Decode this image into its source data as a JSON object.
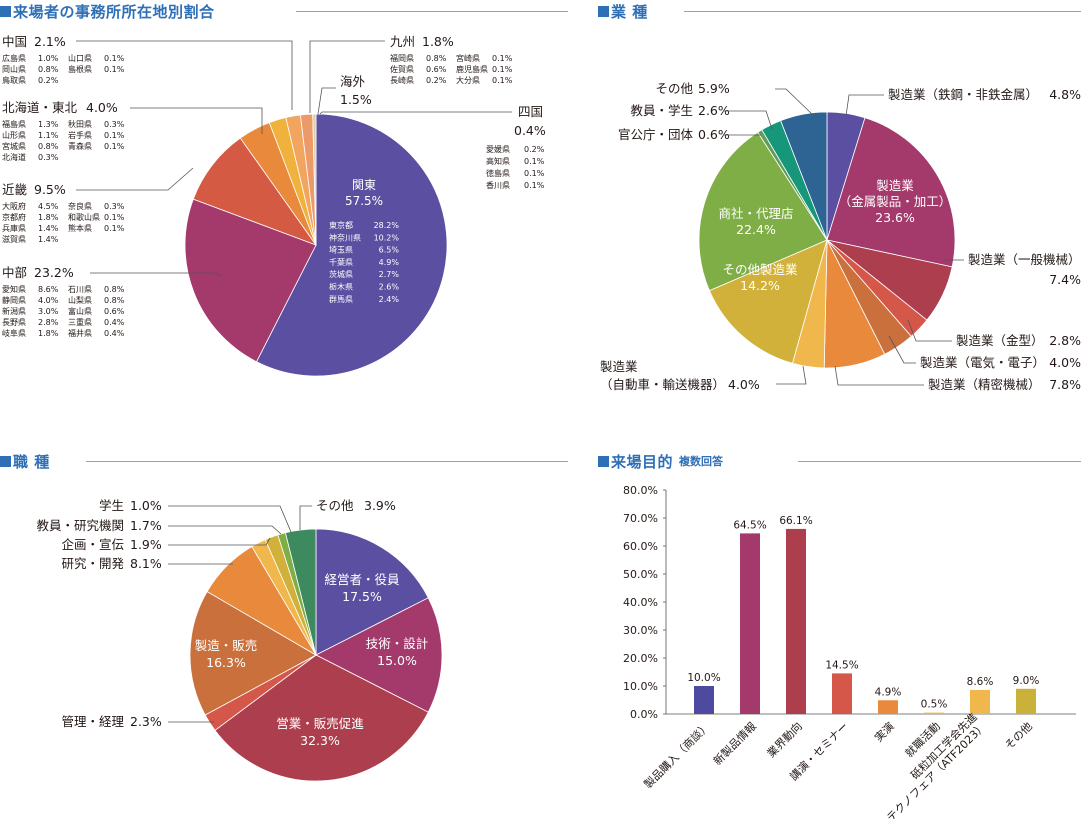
{
  "colors": {
    "header": "#2f6fb6",
    "header_line": "#6aaee6"
  },
  "panels": {
    "region": {
      "title": "来場者の事務所所在地別割合"
    },
    "industry": {
      "title": "業 種"
    },
    "job": {
      "title": "職 種"
    },
    "purpose": {
      "title": "来場目的",
      "subtitle": "複数回答"
    }
  },
  "chart_data": [
    {
      "id": "region",
      "type": "pie",
      "title": "来場者の事務所所在地別割合",
      "slices": [
        {
          "name": "関東",
          "value": 57.5,
          "color": "#5a4fa0",
          "label": "関東",
          "value_label": "57.5%",
          "breakdown": [
            [
              "東京都",
              "28.2%"
            ],
            [
              "神奈川県",
              "10.2%"
            ],
            [
              "埼玉県",
              "6.5%"
            ],
            [
              "千葉県",
              "4.9%"
            ],
            [
              "茨城県",
              "2.7%"
            ],
            [
              "栃木県",
              "2.6%"
            ],
            [
              "群馬県",
              "2.4%"
            ]
          ]
        },
        {
          "name": "中部",
          "value": 23.2,
          "color": "#a33a6b",
          "label": "中部",
          "value_label": "23.2%",
          "breakdown": [
            [
              "愛知県",
              "8.6%",
              "石川県",
              "0.8%"
            ],
            [
              "静岡県",
              "4.0%",
              "山梨県",
              "0.8%"
            ],
            [
              "新潟県",
              "3.0%",
              "富山県",
              "0.6%"
            ],
            [
              "長野県",
              "2.8%",
              "三重県",
              "0.4%"
            ],
            [
              "岐阜県",
              "1.8%",
              "福井県",
              "0.4%"
            ]
          ]
        },
        {
          "name": "近畿",
          "value": 9.5,
          "color": "#d45a44",
          "label": "近畿",
          "value_label": "9.5%",
          "breakdown": [
            [
              "大阪府",
              "4.5%",
              "奈良県",
              "0.3%"
            ],
            [
              "京都府",
              "1.8%",
              "和歌山県",
              "0.1%"
            ],
            [
              "兵庫県",
              "1.4%",
              "熊本県",
              "0.1%"
            ],
            [
              "滋賀県",
              "1.4%",
              "",
              ""
            ]
          ]
        },
        {
          "name": "北海道・東北",
          "value": 4.0,
          "color": "#e8893b",
          "label": "北海道・東北",
          "value_label": "4.0%",
          "breakdown": [
            [
              "福島県",
              "1.3%",
              "秋田県",
              "0.3%"
            ],
            [
              "山形県",
              "1.1%",
              "岩手県",
              "0.1%"
            ],
            [
              "宮城県",
              "0.8%",
              "青森県",
              "0.1%"
            ],
            [
              "北海道",
              "0.3%",
              "",
              ""
            ]
          ]
        },
        {
          "name": "中国",
          "value": 2.1,
          "color": "#f0b13d",
          "label": "中国",
          "value_label": "2.1%",
          "breakdown": [
            [
              "広島県",
              "1.0%",
              "山口県",
              "0.1%"
            ],
            [
              "岡山県",
              "0.8%",
              "島根県",
              "0.1%"
            ],
            [
              "鳥取県",
              "0.2%",
              "",
              ""
            ]
          ]
        },
        {
          "name": "九州",
          "value": 1.8,
          "color": "#f1a55e",
          "label": "九州",
          "value_label": "1.8%",
          "breakdown": [
            [
              "福岡県",
              "0.8%",
              "宮崎県",
              "0.1%"
            ],
            [
              "佐賀県",
              "0.6%",
              "鹿児島県",
              "0.1%"
            ],
            [
              "長崎県",
              "0.2%",
              "大分県",
              "0.1%"
            ]
          ]
        },
        {
          "name": "海外",
          "value": 1.5,
          "color": "#ec9a6a",
          "label": "海外",
          "value_label": "1.5%",
          "breakdown": []
        },
        {
          "name": "四国",
          "value": 0.4,
          "color": "#d9cfa8",
          "label": "四国",
          "value_label": "0.4%",
          "breakdown": [
            [
              "愛媛県",
              "0.2%"
            ],
            [
              "高知県",
              "0.1%"
            ],
            [
              "徳島県",
              "0.1%"
            ],
            [
              "香川県",
              "0.1%"
            ]
          ]
        }
      ]
    },
    {
      "id": "industry",
      "type": "pie",
      "title": "業 種",
      "slices": [
        {
          "name": "製造業（鉄鋼・非鉄金属）",
          "value": 4.8,
          "color": "#5a4fa0",
          "label": "製造業（鉄鋼・非鉄金属）",
          "value_label": "4.8%"
        },
        {
          "name": "製造業（金属製品・加工）",
          "value": 23.6,
          "color": "#a33a6b",
          "label": "製造業\n（金属製品・加工）",
          "value_label": "23.6%"
        },
        {
          "name": "製造業（一般機械）",
          "value": 7.4,
          "color": "#ad3e4e",
          "label": "製造業（一般機械）",
          "value_label": "7.4%"
        },
        {
          "name": "製造業（金型）",
          "value": 2.8,
          "color": "#d4574a",
          "label": "製造業（金型）",
          "value_label": "2.8%"
        },
        {
          "name": "製造業（電気・電子）",
          "value": 4.0,
          "color": "#c9703c",
          "label": "製造業（電気・電子）",
          "value_label": "4.0%"
        },
        {
          "name": "製造業（精密機械）",
          "value": 7.8,
          "color": "#e8893b",
          "label": "製造業（精密機械）",
          "value_label": "7.8%"
        },
        {
          "name": "製造業（自動車・輸送機器）",
          "value": 4.0,
          "color": "#f0b74c",
          "label": "製造業\n（自動車・輸送機器）",
          "value_label": "4.0%"
        },
        {
          "name": "その他製造業",
          "value": 14.2,
          "color": "#d1b13a",
          "label": "その他製造業",
          "value_label": "14.2%"
        },
        {
          "name": "商社・代理店",
          "value": 22.4,
          "color": "#7fae47",
          "label": "商社・代理店",
          "value_label": "22.4%"
        },
        {
          "name": "官公庁・団体",
          "value": 0.6,
          "color": "#5f9d5a",
          "label": "官公庁・団体",
          "value_label": "0.6%"
        },
        {
          "name": "教員・学生",
          "value": 2.6,
          "color": "#16977a",
          "label": "教員・学生",
          "value_label": "2.6%"
        },
        {
          "name": "その他",
          "value": 5.9,
          "color": "#2e6494",
          "label": "その他",
          "value_label": "5.9%"
        }
      ]
    },
    {
      "id": "job",
      "type": "pie",
      "title": "職 種",
      "slices": [
        {
          "name": "経営者・役員",
          "value": 17.5,
          "color": "#5a4fa0",
          "label": "経営者・役員",
          "value_label": "17.5%"
        },
        {
          "name": "技術・設計",
          "value": 15.0,
          "color": "#a33a6b",
          "label": "技術・設計",
          "value_label": "15.0%"
        },
        {
          "name": "営業・販売促進",
          "value": 32.3,
          "color": "#ad3e4e",
          "label": "営業・販売促進",
          "value_label": "32.3%"
        },
        {
          "name": "管理・経理",
          "value": 2.3,
          "color": "#d4574a",
          "label": "管理・経理",
          "value_label": "2.3%"
        },
        {
          "name": "製造・販売",
          "value": 16.3,
          "color": "#c9703c",
          "label": "製造・販売",
          "value_label": "16.3%"
        },
        {
          "name": "研究・開発",
          "value": 8.1,
          "color": "#e8893b",
          "label": "研究・開発",
          "value_label": "8.1%"
        },
        {
          "name": "企画・宣伝",
          "value": 1.9,
          "color": "#f0b74c",
          "label": "企画・宣伝",
          "value_label": "1.9%"
        },
        {
          "name": "教員・研究機関",
          "value": 1.7,
          "color": "#d1b13a",
          "label": "教員・研究機関",
          "value_label": "1.7%"
        },
        {
          "name": "学生",
          "value": 1.0,
          "color": "#7fae47",
          "label": "学生",
          "value_label": "1.0%"
        },
        {
          "name": "その他",
          "value": 3.9,
          "color": "#3d8a5f",
          "label": "その他",
          "value_label": "3.9%"
        }
      ]
    },
    {
      "id": "purpose",
      "type": "bar",
      "title": "来場目的",
      "subtitle": "複数回答",
      "categories": [
        "製品購入（商談）",
        "新製品情報",
        "業界動向",
        "講演・セミナー",
        "実演",
        "就職活動",
        "砥粒加工学会先進テクノフェア（ATF2023）",
        "その他"
      ],
      "category_lines": [
        [
          "製品購入（商談）"
        ],
        [
          "新製品情報"
        ],
        [
          "業界動向"
        ],
        [
          "講演・セミナー"
        ],
        [
          "実演"
        ],
        [
          "就職活動"
        ],
        [
          "砥粒加工学会先進",
          "テクノフェア（ATF2023）"
        ],
        [
          "その他"
        ]
      ],
      "values": [
        10.0,
        64.5,
        66.1,
        14.5,
        4.9,
        0.5,
        8.6,
        9.0
      ],
      "value_labels": [
        "10.0%",
        "64.5%",
        "66.1%",
        "14.5%",
        "4.9%",
        "0.5%",
        "8.6%",
        "9.0%"
      ],
      "colors": [
        "#4e4aa0",
        "#a33a6b",
        "#ad3e4e",
        "#d4574a",
        "#e8893b",
        "#f0b74c",
        "#f0b74c",
        "#c9b13a"
      ],
      "ylim": [
        0,
        80
      ],
      "yticks": [
        "0.0%",
        "10.0%",
        "20.0%",
        "30.0%",
        "40.0%",
        "50.0%",
        "60.0%",
        "70.0%",
        "80.0%"
      ],
      "grid": false
    }
  ]
}
